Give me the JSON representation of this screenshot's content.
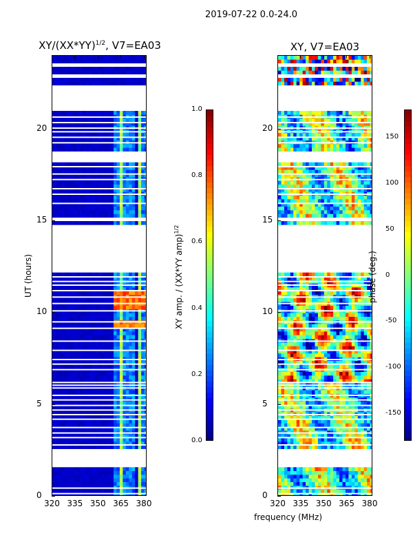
{
  "figure": {
    "suptitle": "2019-07-22 0.0-24.0",
    "xlabel": "frequency (MHz)",
    "ylabel": "UT (hours)",
    "colors": {
      "flagged": "#ffffff",
      "base": "#00007f"
    }
  },
  "chart_data": [
    {
      "type": "heatmap",
      "title": "XY/(XX*YY)^1/2, V7=EA03",
      "xlabel": "",
      "ylabel": "UT (hours)",
      "xlim": [
        320,
        382
      ],
      "ylim": [
        0,
        24
      ],
      "xticks": [
        320,
        335,
        350,
        365,
        380
      ],
      "yticks": [
        0,
        5,
        10,
        15,
        20
      ],
      "colorbar": {
        "label": "XY amp. / (XX*YY amp)^1/2",
        "range": [
          0.0,
          1.0
        ],
        "ticks": [
          "0.0",
          "0.2",
          "0.4",
          "0.6",
          "0.8",
          "1.0"
        ],
        "colormap": "jet"
      },
      "features": [
        {
          "name": "bright channel stripes",
          "freq_MHz": [
            362,
            365,
            368,
            372,
            377,
            380
          ],
          "value": 0.45
        },
        {
          "name": "RFI burst",
          "utc_hours": [
            9.4,
            10.4,
            10.9
          ],
          "value": 0.7
        },
        {
          "name": "background amplitude",
          "value": 0.05
        }
      ]
    },
    {
      "type": "heatmap",
      "title": "XY, V7=EA03",
      "xlabel": "frequency (MHz)",
      "ylabel": "",
      "xlim": [
        320,
        382
      ],
      "ylim": [
        0,
        24
      ],
      "xticks": [
        320,
        335,
        350,
        365,
        380
      ],
      "yticks": [
        0,
        5,
        10,
        15,
        20
      ],
      "colorbar": {
        "label": "phase (deg.)",
        "range": [
          -180,
          180
        ],
        "ticks": [
          "-150",
          "-100",
          "-50",
          "0",
          "50",
          "100",
          "150"
        ],
        "colormap": "jet"
      },
      "features": [
        {
          "name": "noisy phase (low S/N)",
          "utc_hours": [
            22.3,
            24
          ]
        },
        {
          "name": "coherent phase structure",
          "utc_hours": [
            6.3,
            12.2
          ]
        }
      ]
    }
  ],
  "flagged_utc_hours": [
    [
      1.6,
      2.6
    ],
    [
      12.3,
      14.8
    ],
    [
      15.0,
      15.2
    ],
    [
      18.3,
      18.9
    ],
    [
      21.0,
      22.2
    ],
    [
      22.3,
      22.5
    ],
    [
      22.9,
      23.1
    ],
    [
      23.4,
      23.6
    ],
    [
      24.0,
      24.0
    ]
  ],
  "gap_lines_utc_hours": [
    0.2,
    0.5,
    2.85,
    3.25,
    3.5,
    3.8,
    4.25,
    4.5,
    4.75,
    5.0,
    5.3,
    5.55,
    5.95,
    6.1,
    6.25,
    6.95,
    7.25,
    7.5,
    8.0,
    8.5,
    9.2,
    9.55,
    10.15,
    10.55,
    10.9,
    11.25,
    11.55,
    11.75,
    12.0,
    16.0,
    16.5,
    16.8,
    17.3,
    17.6,
    18.0,
    19.3,
    19.6,
    19.9,
    20.1,
    20.4,
    20.7
  ]
}
